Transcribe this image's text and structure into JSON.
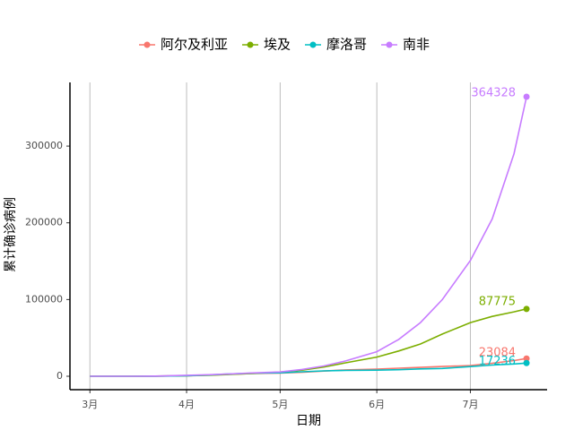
{
  "chart_data": {
    "type": "line",
    "x_label": "日期",
    "y_label": "累计确诊病例",
    "x": [
      0,
      7,
      14,
      21,
      31,
      38,
      45,
      52,
      61,
      68,
      75,
      82,
      92,
      99,
      106,
      113,
      122,
      129,
      136,
      140
    ],
    "xlim": [
      -6.4,
      146.6
    ],
    "xticks": [
      {
        "value": 0,
        "label": "3月"
      },
      {
        "value": 31,
        "label": "4月"
      },
      {
        "value": 61,
        "label": "5月"
      },
      {
        "value": 92,
        "label": "6月"
      },
      {
        "value": 122,
        "label": "7月"
      }
    ],
    "ylim": [
      -17500,
      383000
    ],
    "yticks": [
      0,
      100000,
      200000,
      300000
    ],
    "grid": "x",
    "legend_position": "top",
    "series": [
      {
        "name": "阿尔及利亚",
        "color": "#F8766D",
        "values": [
          0,
          2,
          20,
          90,
          700,
          1500,
          2600,
          3500,
          4100,
          5200,
          6800,
          8300,
          9400,
          10500,
          11600,
          12700,
          13900,
          17000,
          20500,
          23084
        ]
      },
      {
        "name": "埃及",
        "color": "#7CAE00",
        "values": [
          0,
          3,
          50,
          300,
          700,
          1300,
          2400,
          3500,
          5500,
          8000,
          12000,
          17500,
          25000,
          33000,
          42000,
          55000,
          70000,
          78000,
          84000,
          87775
        ]
      },
      {
        "name": "摩洛哥",
        "color": "#00BFC4",
        "values": [
          0,
          2,
          30,
          140,
          650,
          1700,
          3000,
          4100,
          4500,
          5900,
          7000,
          7600,
          7900,
          8500,
          9600,
          10200,
          12600,
          14600,
          16000,
          17236
        ]
      },
      {
        "name": "南非",
        "color": "#C77CFF",
        "values": [
          0,
          7,
          38,
          240,
          1350,
          2000,
          3000,
          4300,
          5650,
          8900,
          13500,
          20000,
          32000,
          48000,
          70000,
          100000,
          151000,
          205000,
          290000,
          364328
        ]
      }
    ]
  }
}
